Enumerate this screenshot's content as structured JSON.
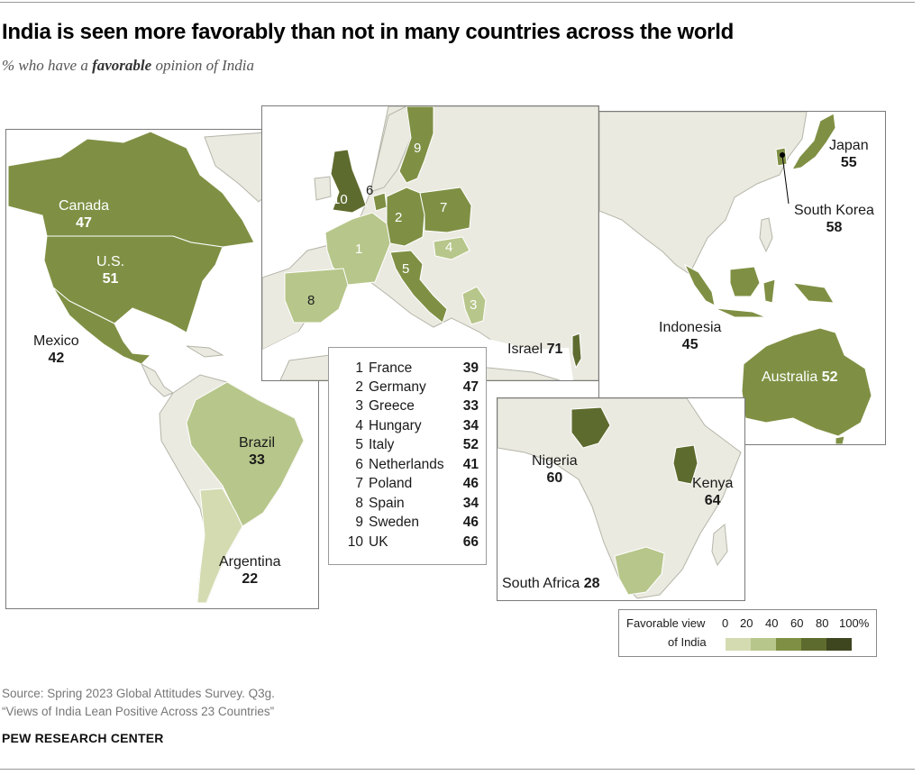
{
  "title": "India is seen more favorably than not in many countries across the world",
  "subtitle_prefix": "% who have a ",
  "subtitle_emphasis": "favorable",
  "subtitle_suffix": " opinion of India",
  "colors": {
    "base": "#ebeae1",
    "border": "#b5b5a9",
    "c0_20": "#d4dbb1",
    "c20_40": "#b7c68a",
    "c40_60": "#7f9044",
    "c60_80": "#5e6b2e",
    "c80_100": "#3e4620"
  },
  "countries": {
    "canada": {
      "name": "Canada",
      "value": "47"
    },
    "us": {
      "name": "U.S.",
      "value": "51"
    },
    "mexico": {
      "name": "Mexico",
      "value": "42"
    },
    "brazil": {
      "name": "Brazil",
      "value": "33"
    },
    "argentina": {
      "name": "Argentina",
      "value": "22"
    },
    "israel": {
      "name": "Israel",
      "value": "71"
    },
    "nigeria": {
      "name": "Nigeria",
      "value": "60"
    },
    "kenya": {
      "name": "Kenya",
      "value": "64"
    },
    "south_africa": {
      "name": "South Africa",
      "value": "28"
    },
    "japan": {
      "name": "Japan",
      "value": "55"
    },
    "south_korea": {
      "name": "South Korea",
      "value": "58"
    },
    "indonesia": {
      "name": "Indonesia",
      "value": "45"
    },
    "australia": {
      "name": "Australia",
      "value": "52"
    }
  },
  "europe_numbers": [
    "1",
    "2",
    "3",
    "4",
    "5",
    "6",
    "7",
    "8",
    "9",
    "10"
  ],
  "europe_legend": [
    {
      "n": "1",
      "name": "France",
      "value": "39"
    },
    {
      "n": "2",
      "name": "Germany",
      "value": "47"
    },
    {
      "n": "3",
      "name": "Greece",
      "value": "33"
    },
    {
      "n": "4",
      "name": "Hungary",
      "value": "34"
    },
    {
      "n": "5",
      "name": "Italy",
      "value": "52"
    },
    {
      "n": "6",
      "name": "Netherlands",
      "value": "41"
    },
    {
      "n": "7",
      "name": "Poland",
      "value": "46"
    },
    {
      "n": "8",
      "name": "Spain",
      "value": "34"
    },
    {
      "n": "9",
      "name": "Sweden",
      "value": "46"
    },
    {
      "n": "10",
      "name": "UK",
      "value": "66"
    }
  ],
  "scale": {
    "label_line1": "Favorable view",
    "label_line2": "of India",
    "ticks": [
      "0",
      "20",
      "40",
      "60",
      "80",
      "100%"
    ]
  },
  "source_line1": "Source: Spring 2023 Global Attitudes Survey. Q3g.",
  "source_line2": "“Views of India Lean Positive Across 23 Countries”",
  "org": "PEW RESEARCH CENTER"
}
